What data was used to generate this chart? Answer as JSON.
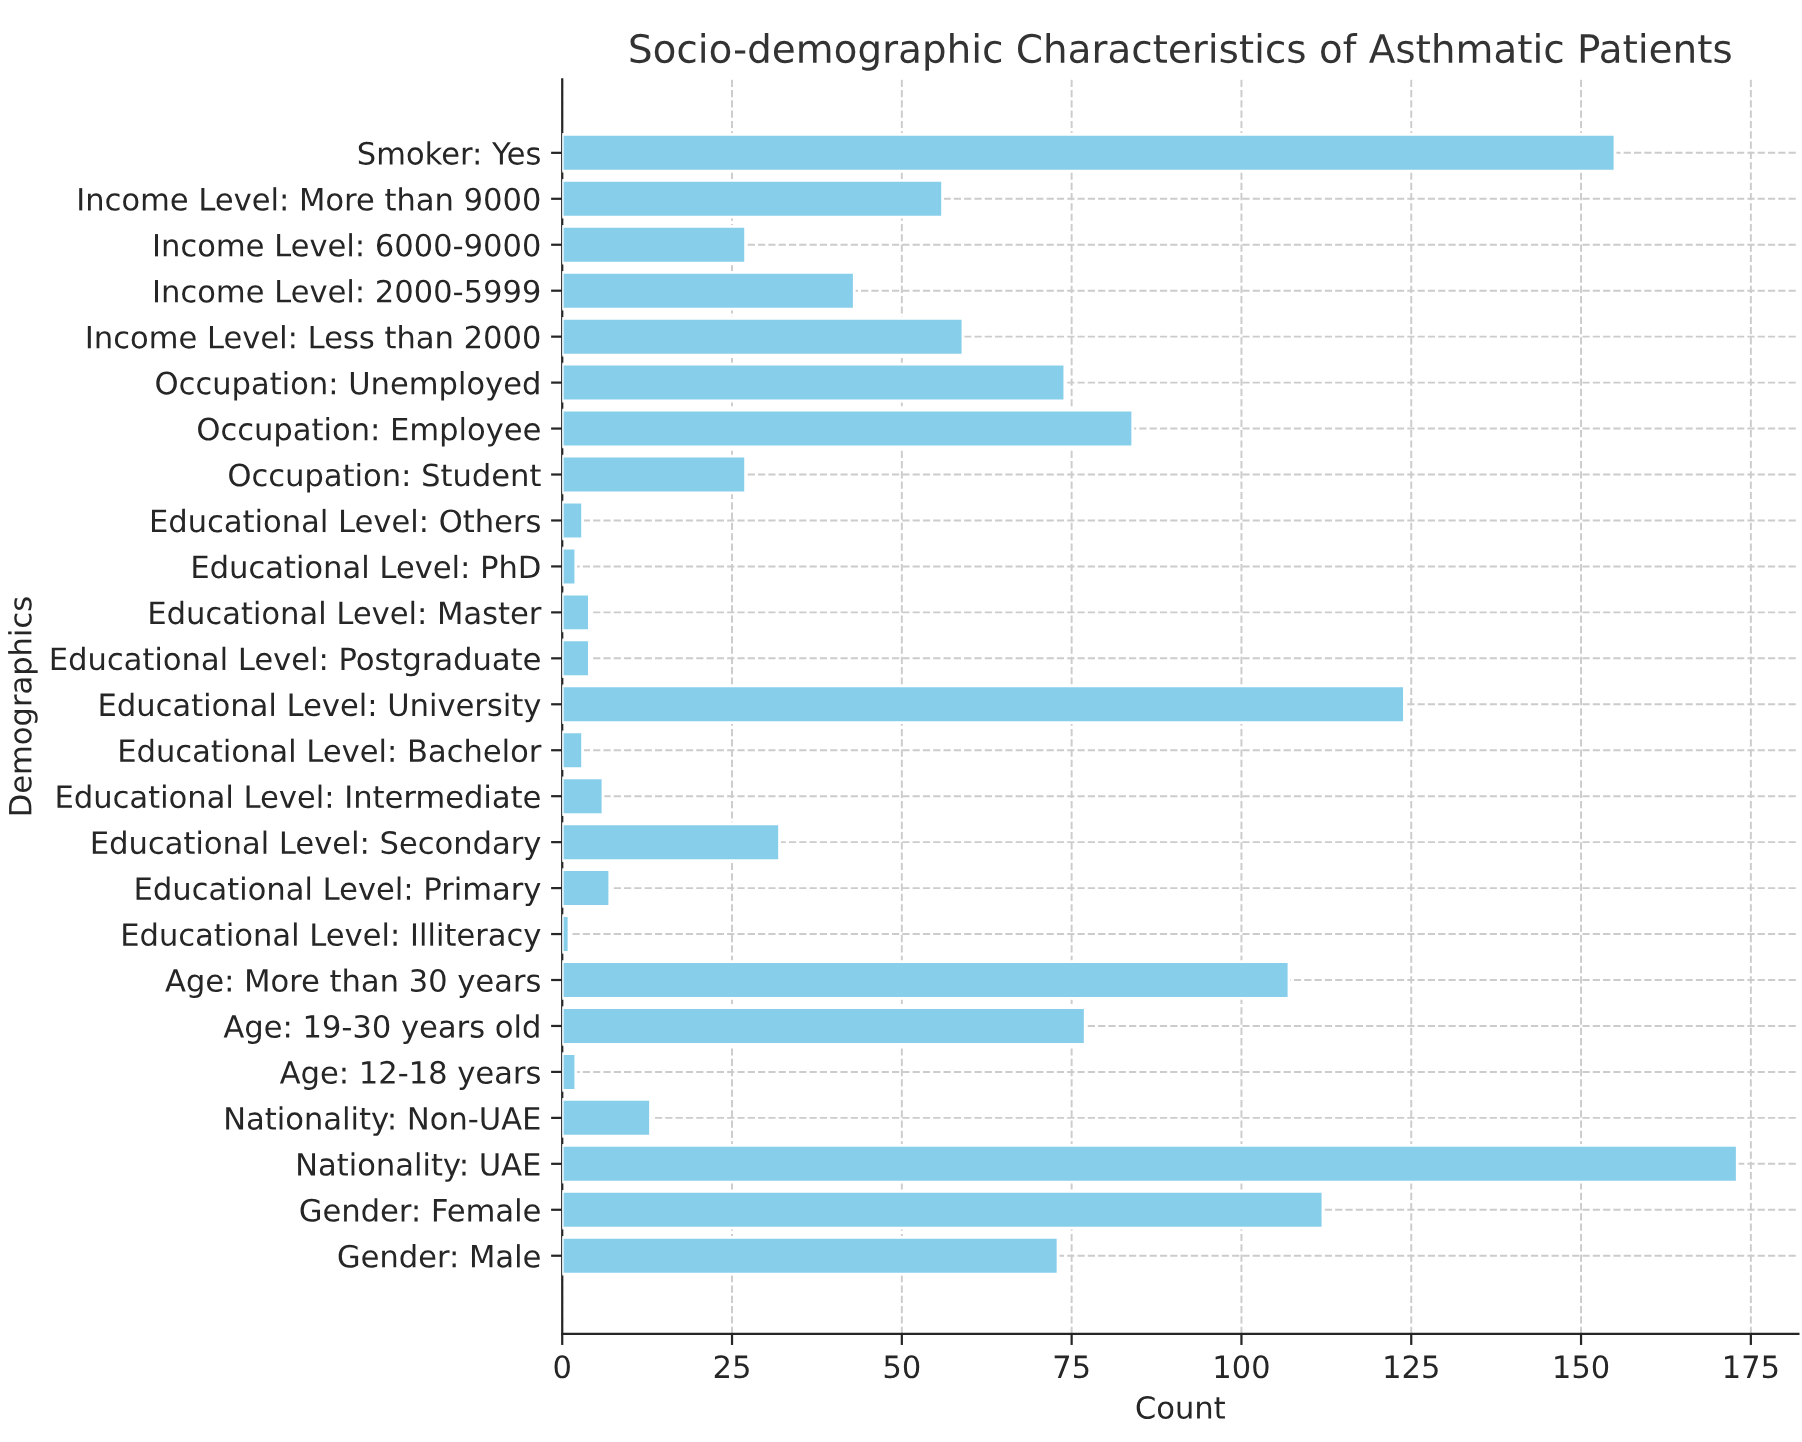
{
  "chart_data": {
    "type": "bar",
    "orientation": "horizontal",
    "title": "Socio-demographic Characteristics of Asthmatic Patients",
    "xlabel": "Count",
    "ylabel": "Demographics",
    "categories": [
      "Smoker: Yes",
      "Income Level: More than 9000",
      "Income Level: 6000-9000",
      "Income Level: 2000-5999",
      "Income Level: Less than 2000",
      "Occupation: Unemployed",
      "Occupation: Employee",
      "Occupation: Student",
      "Educational Level: Others",
      "Educational Level: PhD",
      "Educational Level: Master",
      "Educational Level: Postgraduate",
      "Educational Level: University",
      "Educational Level: Bachelor",
      "Educational Level: Intermediate",
      "Educational Level: Secondary",
      "Educational Level: Primary",
      "Educational Level: Illiteracy",
      "Age: More than 30 years",
      "Age: 19-30 years old",
      "Age: 12-18 years",
      "Nationality: Non-UAE",
      "Nationality: UAE",
      "Gender: Female",
      "Gender: Male"
    ],
    "values": [
      155,
      56,
      27,
      43,
      59,
      74,
      84,
      27,
      3,
      2,
      4,
      4,
      124,
      3,
      6,
      32,
      7,
      1,
      107,
      77,
      2,
      13,
      173,
      112,
      73
    ],
    "color": "#87ceeb",
    "xlim": [
      0,
      182
    ],
    "xticks": [
      0,
      25,
      50,
      75,
      100,
      125,
      150,
      175
    ],
    "grid": true
  }
}
